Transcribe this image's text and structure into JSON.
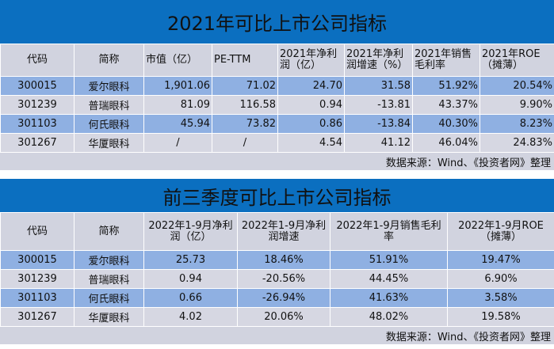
{
  "table1": {
    "title": "2021年可比上市公司指标",
    "headers": [
      "代码",
      "简称",
      "市值（亿）",
      "PE-TTM",
      "2021年净利润（亿）",
      "2021年净利润增速（%）",
      "2021年销售毛利率",
      "2021年ROE（摊薄）"
    ],
    "rows": [
      [
        "300015",
        "爱尔眼科",
        "1,901.06",
        "71.02",
        "24.70",
        "31.58",
        "51.92%",
        "20.54%"
      ],
      [
        "301239",
        "普瑞眼科",
        "81.09",
        "116.58",
        "0.94",
        "-13.81",
        "43.37%",
        "9.90%"
      ],
      [
        "301103",
        "何氏眼科",
        "45.94",
        "73.82",
        "0.86",
        "-13.84",
        "40.30%",
        "8.23%"
      ],
      [
        "301267",
        "华厦眼科",
        "/",
        "/",
        "4.54",
        "41.12",
        "46.04%",
        "24.83%"
      ]
    ],
    "source": "数据来源：Wind、《投资者网》整理"
  },
  "table2": {
    "title": "前三季度可比上市公司指标",
    "headers": [
      "代码",
      "简称",
      "2022年1-9月净利润（亿）",
      "2022年1-9月净利润增速",
      "2022年1-9月销售毛利率",
      "2022年1-9月ROE（摊薄）"
    ],
    "rows": [
      [
        "300015",
        "爱尔眼科",
        "25.73",
        "18.46%",
        "51.91%",
        "19.47%"
      ],
      [
        "301239",
        "普瑞眼科",
        "0.94",
        "-20.56%",
        "44.45%",
        "6.90%"
      ],
      [
        "301103",
        "何氏眼科",
        "0.66",
        "-26.94%",
        "41.63%",
        "3.58%"
      ],
      [
        "301267",
        "华厦眼科",
        "4.02",
        "20.06%",
        "48.02%",
        "19.58%"
      ]
    ],
    "source": "数据来源：Wind、《投资者网》整理"
  },
  "colors": {
    "title_bg": "#0b6fc0",
    "header_bg": "#d1d3df",
    "row_blue": "#8fb0e2",
    "row_grey": "#d6d7e2"
  }
}
